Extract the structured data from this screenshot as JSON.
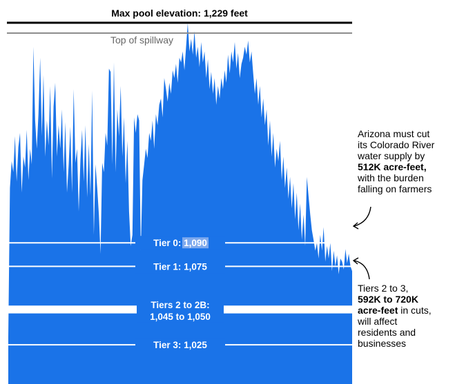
{
  "chart_data": {
    "type": "area",
    "title": "",
    "xlabel": "",
    "ylabel": "",
    "ylim": [
      1000,
      1236
    ],
    "color": "#1a73e8",
    "reference_lines": [
      {
        "name": "max_pool",
        "value": 1229,
        "label": "Max pool elevation: 1,229 feet",
        "color": "#000000"
      },
      {
        "name": "spillway",
        "value": 1221,
        "label": "Top of spillway",
        "color": "#8c8c8c"
      }
    ],
    "tiers": [
      {
        "name": "tier0",
        "label": "Tier 0: ",
        "value_label": "1,090",
        "value": 1090
      },
      {
        "name": "tier1",
        "label": "Tier 1: 1,075",
        "value": 1075
      },
      {
        "name": "tier2",
        "label_line1": "Tiers 2 to 2B:",
        "label_line2": "1,045 to 1,050",
        "range": [
          1045,
          1050
        ]
      },
      {
        "name": "tier3",
        "label": "Tier 3: 1,025",
        "value": 1025
      }
    ],
    "values": [
      1030,
      1125,
      1142,
      1135,
      1158,
      1129,
      1151,
      1160,
      1122,
      1145,
      1138,
      1162,
      1130,
      1150,
      1140,
      1215,
      1168,
      1150,
      1172,
      1208,
      1158,
      1197,
      1145,
      1168,
      1152,
      1190,
      1131,
      1177,
      1192,
      1145,
      1165,
      1150,
      1175,
      1135,
      1167,
      1122,
      1140,
      1164,
      1122,
      1188,
      1141,
      1150,
      1110,
      1143,
      1162,
      1129,
      1165,
      1119,
      1153,
      1120,
      1187,
      1095,
      1140,
      1125,
      1108,
      1083,
      1141,
      1135,
      1160,
      1152,
      1201,
      1199,
      1140,
      1205,
      1135,
      1175,
      1158,
      1190,
      1145,
      1170,
      1128,
      1155,
      1110,
      1088,
      1095,
      1170,
      1160,
      1172,
      1168,
      1085,
      1130,
      1140,
      1150,
      1144,
      1160,
      1155,
      1168,
      1150,
      1172,
      1165,
      1178,
      1182,
      1170,
      1195,
      1188,
      1180,
      1192,
      1185,
      1200,
      1195,
      1204,
      1192,
      1208,
      1205,
      1212,
      1200,
      1215,
      1230,
      1212,
      1220,
      1210,
      1225,
      1208,
      1215,
      1202,
      1218,
      1205,
      1212,
      1195,
      1207,
      1188,
      1199,
      1185,
      1195,
      1178,
      1190,
      1182,
      1195,
      1188,
      1200,
      1192,
      1210,
      1198,
      1212,
      1205,
      1218,
      1201,
      1211,
      1195,
      1204,
      1208,
      1215,
      1210,
      1219,
      1205,
      1212,
      1198,
      1185,
      1195,
      1178,
      1190,
      1170,
      1182,
      1165,
      1175,
      1152,
      1168,
      1145,
      1160,
      1138,
      1150,
      1142,
      1155,
      1130,
      1145,
      1125,
      1138,
      1118,
      1132,
      1112,
      1128,
      1105,
      1122,
      1098,
      1115,
      1092,
      1108,
      1088,
      1132,
      1120,
      1108,
      1098,
      1092,
      1085,
      1090,
      1080,
      1095,
      1085,
      1100,
      1078,
      1088,
      1080,
      1090,
      1072,
      1085,
      1075,
      1082,
      1070,
      1080,
      1078,
      1073,
      1086,
      1077,
      1083,
      1075,
      1072
    ]
  },
  "annotations": {
    "arizona": {
      "before": "Arizona must cut its Colorado River water supply by ",
      "bold": "512K acre-feet,",
      "after": " with the burden falling on farmers"
    },
    "tiers23": {
      "before": "Tiers 2 to 3, ",
      "bold": "592K to 720K acre-feet",
      "after": " in cuts, will affect residents and businesses"
    }
  }
}
